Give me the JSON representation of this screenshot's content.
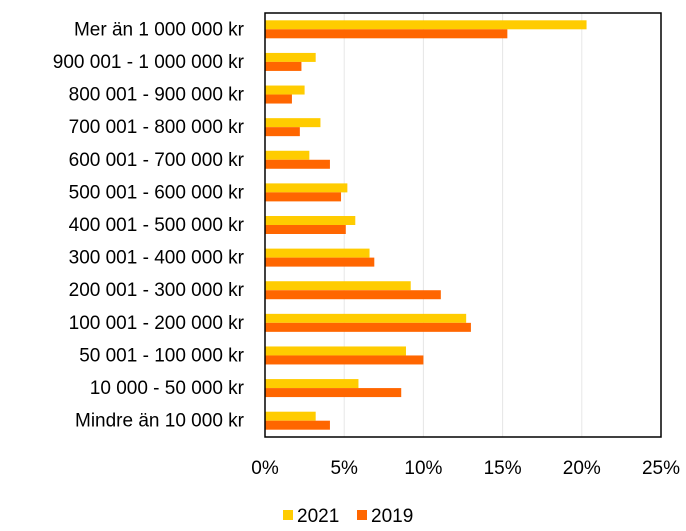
{
  "chart_data": {
    "type": "bar",
    "orientation": "horizontal",
    "categories": [
      "Mer än 1 000 000 kr",
      "900 001 - 1 000 000 kr",
      "800 001 - 900 000 kr",
      "700 001 - 800 000 kr",
      "600 001 - 700 000 kr",
      "500 001 - 600 000 kr",
      "400 001 - 500 000 kr",
      "300 001 - 400 000 kr",
      "200 001 - 300 000 kr",
      "100 001 - 200 000 kr",
      "50 001 - 100 000 kr",
      "10 000 - 50 000 kr",
      "Mindre än 10 000 kr"
    ],
    "series": [
      {
        "name": "2021",
        "color": "#FFCC00",
        "values": [
          20.3,
          3.2,
          2.5,
          3.5,
          2.8,
          5.2,
          5.7,
          6.6,
          9.2,
          12.7,
          8.9,
          5.9,
          3.2
        ]
      },
      {
        "name": "2019",
        "color": "#FF6600",
        "values": [
          15.3,
          2.3,
          1.7,
          2.2,
          4.1,
          4.8,
          5.1,
          6.9,
          11.1,
          13.0,
          10.0,
          8.6,
          4.1
        ]
      }
    ],
    "xlim": [
      0,
      25
    ],
    "xticks": [
      "0%",
      "5%",
      "10%",
      "15%",
      "20%",
      "25%"
    ],
    "grid": "vertical",
    "legend_position": "bottom",
    "title": "",
    "xlabel": "",
    "ylabel": ""
  }
}
